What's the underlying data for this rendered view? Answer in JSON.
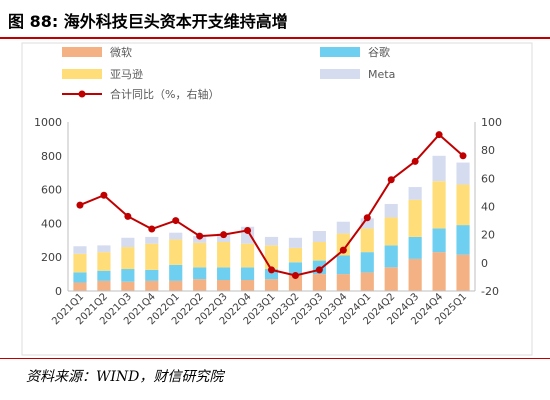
{
  "header": {
    "title": "图 88:  海外科技巨头资本开支维持高增"
  },
  "footer": {
    "source": "资料来源：WIND，财信研究院"
  },
  "chart_data": {
    "type": "bar",
    "stacked": true,
    "categories": [
      "2021Q1",
      "2021Q2",
      "2021Q3",
      "2021Q4",
      "2022Q1",
      "2022Q2",
      "2022Q3",
      "2022Q4",
      "2023Q1",
      "2023Q2",
      "2023Q3",
      "2023Q4",
      "2024Q1",
      "2024Q2",
      "2024Q3",
      "2024Q4",
      "2025Q1"
    ],
    "series": [
      {
        "name": "微软",
        "color": "#f4b183",
        "values": [
          50,
          60,
          55,
          60,
          60,
          70,
          65,
          65,
          70,
          100,
          100,
          100,
          110,
          140,
          190,
          230,
          215
        ]
      },
      {
        "name": "谷歌",
        "color": "#6fcff0",
        "values": [
          60,
          60,
          75,
          65,
          95,
          70,
          75,
          75,
          60,
          70,
          80,
          110,
          120,
          130,
          130,
          140,
          175
        ]
      },
      {
        "name": "亚马逊",
        "color": "#ffde7a",
        "values": [
          110,
          110,
          130,
          155,
          150,
          145,
          150,
          140,
          140,
          85,
          110,
          130,
          140,
          165,
          220,
          280,
          240
        ]
      },
      {
        "name": "Meta",
        "color": "#d6dcf0",
        "values": [
          45,
          40,
          55,
          40,
          40,
          40,
          50,
          100,
          50,
          60,
          65,
          70,
          60,
          80,
          75,
          150,
          130
        ]
      }
    ],
    "line": {
      "name": "合计同比（%，右轴）",
      "color": "#c00000",
      "values": [
        41,
        48,
        33,
        24,
        30,
        19,
        20,
        23,
        -5,
        -9,
        -5,
        9,
        32,
        59,
        72,
        91,
        76
      ]
    },
    "ylim": [
      0,
      1000
    ],
    "yticks": [
      0,
      200,
      400,
      600,
      800,
      1000
    ],
    "y2lim": [
      -20,
      100
    ],
    "y2ticks": [
      -20,
      0,
      20,
      40,
      60,
      80,
      100
    ],
    "legend_position": "top"
  }
}
